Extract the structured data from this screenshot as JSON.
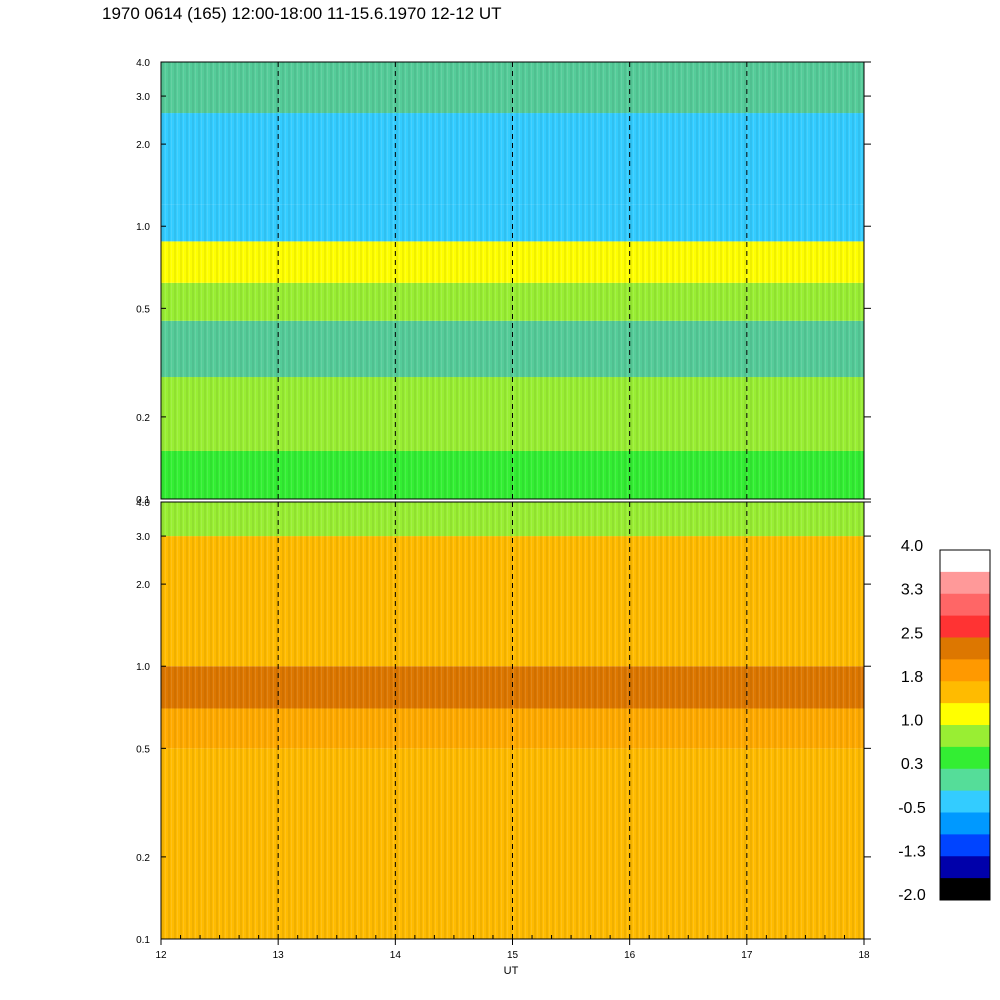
{
  "header": {
    "title": "1970 0614 (165) 12:00-18:00 11-15.6.1970  12-12 UT"
  },
  "chart_data": [
    {
      "type": "heatmap",
      "panel": "upper",
      "x_range": [
        12,
        18
      ],
      "y_range": [
        0.1,
        4.0
      ],
      "y_scale": "log",
      "x_ticks": [
        12,
        13,
        14,
        15,
        16,
        17,
        18
      ],
      "y_tick_labels": [
        "4.0",
        "3.0",
        "2.0",
        "1.0",
        "0.5",
        "0.2",
        "0.1"
      ],
      "y_tick_values": [
        4.0,
        3.0,
        2.0,
        1.0,
        0.5,
        0.2,
        0.1
      ],
      "hour_markers": [
        13,
        14,
        15,
        16,
        17
      ],
      "bands": [
        {
          "y_from": 0.1,
          "y_to": 0.15,
          "color": "#33ee33"
        },
        {
          "y_from": 0.15,
          "y_to": 0.28,
          "color": "#99ee33"
        },
        {
          "y_from": 0.28,
          "y_to": 0.45,
          "color": "#55cc99"
        },
        {
          "y_from": 0.45,
          "y_to": 0.62,
          "color": "#99ee33"
        },
        {
          "y_from": 0.62,
          "y_to": 0.88,
          "color": "#ffff00"
        },
        {
          "y_from": 0.88,
          "y_to": 1.2,
          "color": "#33ccff"
        },
        {
          "y_from": 1.2,
          "y_to": 2.6,
          "color": "#33ccff"
        },
        {
          "y_from": 2.6,
          "y_to": 4.0,
          "color": "#55cc99"
        }
      ]
    },
    {
      "type": "heatmap",
      "panel": "lower",
      "x_range": [
        12,
        18
      ],
      "y_range": [
        0.1,
        4.0
      ],
      "y_scale": "log",
      "x_ticks": [
        12,
        13,
        14,
        15,
        16,
        17,
        18
      ],
      "x_tick_labels": [
        "12",
        "13",
        "14",
        "15",
        "16",
        "17",
        "18"
      ],
      "xlabel": "UT",
      "y_tick_labels": [
        "4.0",
        "3.0",
        "2.0",
        "1.0",
        "0.5",
        "0.2",
        "0.1"
      ],
      "y_tick_values": [
        4.0,
        3.0,
        2.0,
        1.0,
        0.5,
        0.2,
        0.1
      ],
      "hour_markers": [
        13,
        14,
        15,
        16,
        17
      ],
      "bands": [
        {
          "y_from": 0.1,
          "y_to": 0.5,
          "color": "#ffbb00"
        },
        {
          "y_from": 0.5,
          "y_to": 0.7,
          "color": "#ffaa00"
        },
        {
          "y_from": 0.7,
          "y_to": 1.0,
          "color": "#dd7700"
        },
        {
          "y_from": 1.0,
          "y_to": 3.0,
          "color": "#ffbb00"
        },
        {
          "y_from": 3.0,
          "y_to": 4.0,
          "color": "#99ee33"
        }
      ]
    }
  ],
  "colorbar": {
    "labels": [
      "4.0",
      "3.3",
      "2.5",
      "1.8",
      "1.0",
      "0.3",
      "-0.5",
      "-1.3",
      "-2.0"
    ],
    "colors_top_to_bottom": [
      "#ffffff",
      "#ff9999",
      "#ff6666",
      "#ff3333",
      "#dd7700",
      "#ff9900",
      "#ffbb00",
      "#ffff00",
      "#99ee33",
      "#33ee33",
      "#55dd99",
      "#33ccff",
      "#0099ff",
      "#0044ff",
      "#0000aa",
      "#000000"
    ]
  }
}
